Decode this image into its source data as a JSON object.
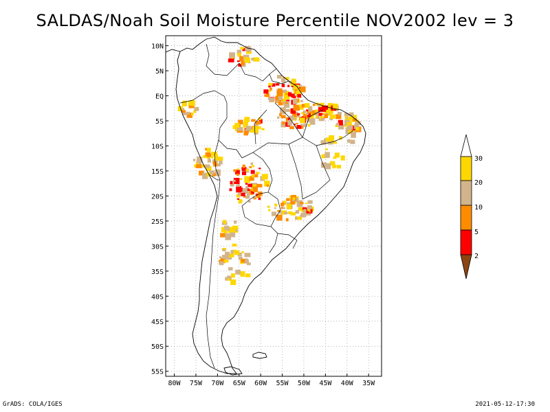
{
  "title": "SALDAS/Noah Soil Moisture Percentile NOV2002 lev = 3",
  "footer": {
    "left": "GrADS: COLA/IGES",
    "right": "2021-05-12-17:30"
  },
  "map": {
    "lon_range": [
      -82,
      -32
    ],
    "lat_range": [
      -56,
      12
    ],
    "lon_ticks": [
      "80W",
      "75W",
      "70W",
      "65W",
      "60W",
      "55W",
      "50W",
      "45W",
      "40W",
      "35W"
    ],
    "lat_ticks": [
      "10N",
      "5N",
      "EQ",
      "5S",
      "10S",
      "15S",
      "20S",
      "25S",
      "30S",
      "35S",
      "40S",
      "45S",
      "50S",
      "55S"
    ],
    "grid": "dotted"
  },
  "colorbar": {
    "labels": [
      "30",
      "20",
      "10",
      "5",
      "2"
    ],
    "colors": {
      "above30": "#ffffff",
      "c20_30": "#ffd700",
      "c10_20": "#d2b48c",
      "c5_10": "#ff8c00",
      "c2_5": "#ff0000",
      "below2": "#8b4513"
    }
  },
  "palette": {
    "yellow": "#ffd700",
    "tan": "#d2b48c",
    "orange": "#ff8c00",
    "red": "#ff0000",
    "brown": "#8b4513"
  }
}
